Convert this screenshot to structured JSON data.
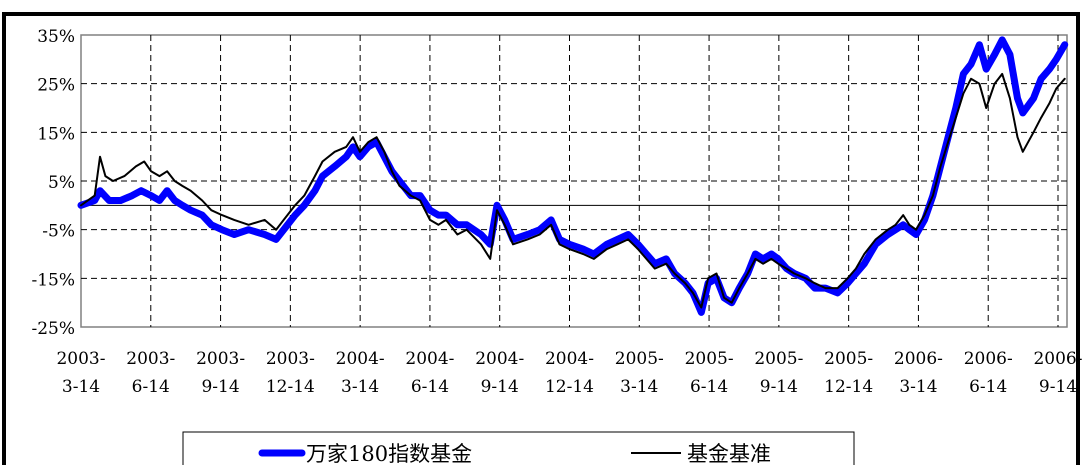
{
  "chart_data": {
    "type": "line",
    "title": "",
    "xlabel": "",
    "ylabel": "",
    "ylim": [
      -25,
      35
    ],
    "y_ticks": [
      "35%",
      "25%",
      "15%",
      "5%",
      "-5%",
      "-15%",
      "-25%"
    ],
    "y_tick_values": [
      35,
      25,
      15,
      5,
      -5,
      -15,
      -25
    ],
    "x_ticks": [
      {
        "top": "2003-",
        "bottom": "3-14"
      },
      {
        "top": "2003-",
        "bottom": "6-14"
      },
      {
        "top": "2003-",
        "bottom": "9-14"
      },
      {
        "top": "2003-",
        "bottom": "12-14"
      },
      {
        "top": "2004-",
        "bottom": "3-14"
      },
      {
        "top": "2004-",
        "bottom": "6-14"
      },
      {
        "top": "2004-",
        "bottom": "9-14"
      },
      {
        "top": "2004-",
        "bottom": "12-14"
      },
      {
        "top": "2005-",
        "bottom": "3-14"
      },
      {
        "top": "2005-",
        "bottom": "6-14"
      },
      {
        "top": "2005-",
        "bottom": "9-14"
      },
      {
        "top": "2005-",
        "bottom": "12-14"
      },
      {
        "top": "2006-",
        "bottom": "3-14"
      },
      {
        "top": "2006-",
        "bottom": "6-14"
      },
      {
        "top": "2006-",
        "bottom": "9-14"
      }
    ],
    "grid": true,
    "legend_position": "bottom",
    "series": [
      {
        "name": "万家180指数基金",
        "color": "#0000ff",
        "points": [
          [
            "2003-03-14",
            0
          ],
          [
            "2003-04-01",
            1
          ],
          [
            "2003-04-08",
            3
          ],
          [
            "2003-04-20",
            1
          ],
          [
            "2003-05-05",
            1
          ],
          [
            "2003-05-20",
            2
          ],
          [
            "2003-06-01",
            3
          ],
          [
            "2003-06-14",
            2
          ],
          [
            "2003-06-25",
            1
          ],
          [
            "2003-07-05",
            3
          ],
          [
            "2003-07-15",
            1
          ],
          [
            "2003-07-25",
            0
          ],
          [
            "2003-08-05",
            -1
          ],
          [
            "2003-08-20",
            -2
          ],
          [
            "2003-09-01",
            -4
          ],
          [
            "2003-09-15",
            -5
          ],
          [
            "2003-10-01",
            -6
          ],
          [
            "2003-10-20",
            -5
          ],
          [
            "2003-11-10",
            -6
          ],
          [
            "2003-11-25",
            -7
          ],
          [
            "2003-12-05",
            -5
          ],
          [
            "2003-12-20",
            -2
          ],
          [
            "2004-01-01",
            0
          ],
          [
            "2004-01-15",
            3
          ],
          [
            "2004-01-25",
            6
          ],
          [
            "2004-02-10",
            8
          ],
          [
            "2004-02-25",
            10
          ],
          [
            "2004-03-05",
            12
          ],
          [
            "2004-03-14",
            10
          ],
          [
            "2004-03-25",
            12
          ],
          [
            "2004-04-05",
            13
          ],
          [
            "2004-04-15",
            10
          ],
          [
            "2004-04-25",
            7
          ],
          [
            "2004-05-05",
            5
          ],
          [
            "2004-05-20",
            2
          ],
          [
            "2004-06-01",
            2
          ],
          [
            "2004-06-14",
            -1
          ],
          [
            "2004-06-25",
            -2
          ],
          [
            "2004-07-05",
            -2
          ],
          [
            "2004-07-20",
            -4
          ],
          [
            "2004-08-01",
            -4
          ],
          [
            "2004-08-20",
            -6
          ],
          [
            "2004-09-01",
            -8
          ],
          [
            "2004-09-10",
            0
          ],
          [
            "2004-09-20",
            -3
          ],
          [
            "2004-10-01",
            -7
          ],
          [
            "2004-10-20",
            -6
          ],
          [
            "2004-11-05",
            -5
          ],
          [
            "2004-11-20",
            -3
          ],
          [
            "2004-12-01",
            -7
          ],
          [
            "2004-12-14",
            -8
          ],
          [
            "2005-01-01",
            -9
          ],
          [
            "2005-01-15",
            -10
          ],
          [
            "2005-02-01",
            -8
          ],
          [
            "2005-02-15",
            -7
          ],
          [
            "2005-03-01",
            -6
          ],
          [
            "2005-03-14",
            -8
          ],
          [
            "2005-03-25",
            -10
          ],
          [
            "2005-04-05",
            -12
          ],
          [
            "2005-04-20",
            -11
          ],
          [
            "2005-05-01",
            -14
          ],
          [
            "2005-05-15",
            -16
          ],
          [
            "2005-05-25",
            -18
          ],
          [
            "2005-06-05",
            -22
          ],
          [
            "2005-06-14",
            -16
          ],
          [
            "2005-06-25",
            -15
          ],
          [
            "2005-07-05",
            -19
          ],
          [
            "2005-07-15",
            -20
          ],
          [
            "2005-07-25",
            -17
          ],
          [
            "2005-08-05",
            -14
          ],
          [
            "2005-08-15",
            -10
          ],
          [
            "2005-08-25",
            -11
          ],
          [
            "2005-09-05",
            -10
          ],
          [
            "2005-09-14",
            -11
          ],
          [
            "2005-09-25",
            -13
          ],
          [
            "2005-10-05",
            -14
          ],
          [
            "2005-10-20",
            -15
          ],
          [
            "2005-11-01",
            -17
          ],
          [
            "2005-11-15",
            -17
          ],
          [
            "2005-12-01",
            -18
          ],
          [
            "2005-12-14",
            -16
          ],
          [
            "2005-12-25",
            -14
          ],
          [
            "2006-01-05",
            -12
          ],
          [
            "2006-01-20",
            -8
          ],
          [
            "2006-02-05",
            -6
          ],
          [
            "2006-02-15",
            -5
          ],
          [
            "2006-02-25",
            -4
          ],
          [
            "2006-03-05",
            -5
          ],
          [
            "2006-03-14",
            -6
          ],
          [
            "2006-03-25",
            -3
          ],
          [
            "2006-04-05",
            2
          ],
          [
            "2006-04-15",
            8
          ],
          [
            "2006-04-25",
            14
          ],
          [
            "2006-05-05",
            20
          ],
          [
            "2006-05-15",
            27
          ],
          [
            "2006-05-25",
            29
          ],
          [
            "2006-06-05",
            33
          ],
          [
            "2006-06-14",
            28
          ],
          [
            "2006-06-25",
            31
          ],
          [
            "2006-07-05",
            34
          ],
          [
            "2006-07-15",
            31
          ],
          [
            "2006-07-25",
            22
          ],
          [
            "2006-08-01",
            19
          ],
          [
            "2006-08-15",
            22
          ],
          [
            "2006-08-25",
            26
          ],
          [
            "2006-09-05",
            28
          ],
          [
            "2006-09-14",
            30
          ],
          [
            "2006-09-25",
            33
          ]
        ]
      },
      {
        "name": "基金基准",
        "color": "#000000",
        "points": [
          [
            "2003-03-14",
            0
          ],
          [
            "2003-04-01",
            2
          ],
          [
            "2003-04-08",
            10
          ],
          [
            "2003-04-15",
            6
          ],
          [
            "2003-04-25",
            5
          ],
          [
            "2003-05-10",
            6
          ],
          [
            "2003-05-25",
            8
          ],
          [
            "2003-06-05",
            9
          ],
          [
            "2003-06-14",
            7
          ],
          [
            "2003-06-25",
            6
          ],
          [
            "2003-07-05",
            7
          ],
          [
            "2003-07-15",
            5
          ],
          [
            "2003-07-25",
            4
          ],
          [
            "2003-08-05",
            3
          ],
          [
            "2003-08-20",
            1
          ],
          [
            "2003-09-01",
            -1
          ],
          [
            "2003-09-15",
            -2
          ],
          [
            "2003-10-01",
            -3
          ],
          [
            "2003-10-20",
            -4
          ],
          [
            "2003-11-10",
            -3
          ],
          [
            "2003-11-25",
            -5
          ],
          [
            "2003-12-05",
            -3
          ],
          [
            "2003-12-20",
            0
          ],
          [
            "2004-01-01",
            2
          ],
          [
            "2004-01-15",
            6
          ],
          [
            "2004-01-25",
            9
          ],
          [
            "2004-02-10",
            11
          ],
          [
            "2004-02-25",
            12
          ],
          [
            "2004-03-05",
            14
          ],
          [
            "2004-03-14",
            11
          ],
          [
            "2004-03-25",
            13
          ],
          [
            "2004-04-05",
            14
          ],
          [
            "2004-04-15",
            11
          ],
          [
            "2004-04-25",
            7
          ],
          [
            "2004-05-05",
            4
          ],
          [
            "2004-05-20",
            2
          ],
          [
            "2004-06-01",
            1
          ],
          [
            "2004-06-14",
            -3
          ],
          [
            "2004-06-25",
            -4
          ],
          [
            "2004-07-05",
            -3
          ],
          [
            "2004-07-20",
            -6
          ],
          [
            "2004-08-01",
            -5
          ],
          [
            "2004-08-20",
            -8
          ],
          [
            "2004-09-01",
            -11
          ],
          [
            "2004-09-10",
            -1
          ],
          [
            "2004-09-20",
            -4
          ],
          [
            "2004-10-01",
            -8
          ],
          [
            "2004-10-20",
            -7
          ],
          [
            "2004-11-05",
            -6
          ],
          [
            "2004-11-20",
            -4
          ],
          [
            "2004-12-01",
            -8
          ],
          [
            "2004-12-14",
            -9
          ],
          [
            "2005-01-01",
            -10
          ],
          [
            "2005-01-15",
            -11
          ],
          [
            "2005-02-01",
            -9
          ],
          [
            "2005-02-15",
            -8
          ],
          [
            "2005-03-01",
            -7
          ],
          [
            "2005-03-14",
            -9
          ],
          [
            "2005-03-25",
            -11
          ],
          [
            "2005-04-05",
            -13
          ],
          [
            "2005-04-20",
            -12
          ],
          [
            "2005-05-01",
            -14
          ],
          [
            "2005-05-15",
            -16
          ],
          [
            "2005-05-25",
            -18
          ],
          [
            "2005-06-05",
            -21
          ],
          [
            "2005-06-14",
            -15
          ],
          [
            "2005-06-25",
            -14
          ],
          [
            "2005-07-05",
            -19
          ],
          [
            "2005-07-15",
            -20
          ],
          [
            "2005-07-25",
            -17
          ],
          [
            "2005-08-05",
            -14
          ],
          [
            "2005-08-15",
            -11
          ],
          [
            "2005-08-25",
            -12
          ],
          [
            "2005-09-05",
            -11
          ],
          [
            "2005-09-14",
            -12
          ],
          [
            "2005-09-25",
            -13
          ],
          [
            "2005-10-05",
            -14
          ],
          [
            "2005-10-20",
            -15
          ],
          [
            "2005-11-01",
            -16
          ],
          [
            "2005-11-15",
            -17
          ],
          [
            "2005-12-01",
            -17
          ],
          [
            "2005-12-14",
            -15
          ],
          [
            "2005-12-25",
            -13
          ],
          [
            "2006-01-05",
            -10
          ],
          [
            "2006-01-20",
            -7
          ],
          [
            "2006-02-05",
            -5
          ],
          [
            "2006-02-15",
            -4
          ],
          [
            "2006-02-25",
            -2
          ],
          [
            "2006-03-05",
            -4
          ],
          [
            "2006-03-14",
            -5
          ],
          [
            "2006-03-25",
            -2
          ],
          [
            "2006-04-05",
            2
          ],
          [
            "2006-04-15",
            8
          ],
          [
            "2006-04-25",
            13
          ],
          [
            "2006-05-05",
            18
          ],
          [
            "2006-05-15",
            23
          ],
          [
            "2006-05-25",
            26
          ],
          [
            "2006-06-05",
            25
          ],
          [
            "2006-06-14",
            20
          ],
          [
            "2006-06-25",
            25
          ],
          [
            "2006-07-05",
            27
          ],
          [
            "2006-07-15",
            22
          ],
          [
            "2006-07-25",
            14
          ],
          [
            "2006-08-01",
            11
          ],
          [
            "2006-08-15",
            15
          ],
          [
            "2006-08-25",
            18
          ],
          [
            "2006-09-05",
            21
          ],
          [
            "2006-09-14",
            24
          ],
          [
            "2006-09-25",
            26
          ]
        ]
      }
    ]
  }
}
